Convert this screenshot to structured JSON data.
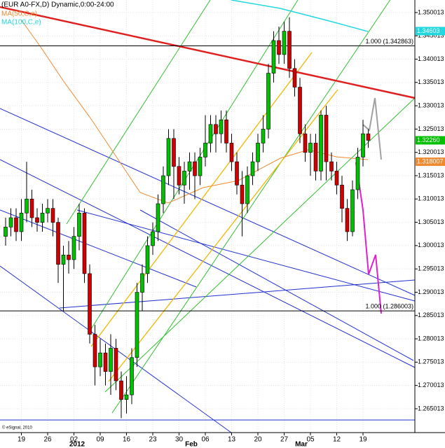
{
  "chart_data": {
    "type": "candlestick",
    "title": "(EUR A0-FX,D) Dynamic,0:00-24:00",
    "indicators": [
      {
        "name": "MA(50,C,e)",
        "color": "#f08a30"
      },
      {
        "name": "MA(100,C,e)",
        "color": "#20d8e0"
      }
    ],
    "footer": "© eSignal, 2010",
    "categories": [
      null,
      null,
      null,
      "19",
      null,
      null,
      null,
      null,
      "26",
      null,
      null,
      null,
      null,
      "02",
      null,
      null,
      null,
      null,
      "09",
      null,
      null,
      null,
      null,
      "16",
      null,
      null,
      null,
      null,
      "23",
      null,
      null,
      null,
      null,
      "30",
      null,
      null,
      null,
      null,
      "06",
      null,
      null,
      null,
      null,
      "13",
      null,
      null,
      null,
      null,
      "20",
      null,
      null,
      null,
      null,
      "27",
      null,
      null,
      null,
      null,
      "05",
      null,
      null,
      null,
      null,
      "12",
      null,
      null,
      null,
      null,
      "19",
      null
    ],
    "month_labels": [
      "2012",
      "Feb",
      "Mar"
    ],
    "open": [
      1.302,
      1.304,
      1.306,
      1.303,
      1.307,
      1.31,
      1.306,
      1.305,
      1.307,
      1.308,
      1.305,
      1.296,
      1.298,
      1.297,
      1.302,
      1.307,
      1.294,
      1.281,
      1.274,
      1.277,
      1.273,
      1.278,
      1.271,
      1.267,
      1.268,
      1.276,
      1.29,
      1.294,
      1.3,
      1.303,
      1.309,
      1.315,
      1.323,
      1.317,
      1.313,
      1.316,
      1.318,
      1.315,
      1.319,
      1.322,
      1.326,
      1.324,
      1.327,
      1.322,
      1.318,
      1.313,
      1.309,
      1.315,
      1.318,
      1.322,
      1.325,
      1.337,
      1.344,
      1.341,
      1.346,
      1.338,
      1.334,
      1.324,
      1.32,
      1.322,
      1.316,
      1.328,
      1.318,
      1.316,
      1.313,
      1.308,
      1.303,
      1.312,
      1.319,
      1.324
    ],
    "high": [
      1.306,
      1.308,
      1.308,
      1.31,
      1.318,
      1.312,
      1.308,
      1.309,
      1.31,
      1.31,
      1.306,
      1.3,
      1.301,
      1.304,
      1.309,
      1.308,
      1.296,
      1.283,
      1.28,
      1.279,
      1.281,
      1.28,
      1.273,
      1.272,
      1.278,
      1.292,
      1.296,
      1.302,
      1.305,
      1.311,
      1.317,
      1.325,
      1.325,
      1.319,
      1.318,
      1.32,
      1.32,
      1.321,
      1.328,
      1.328,
      1.328,
      1.329,
      1.329,
      1.324,
      1.32,
      1.316,
      1.317,
      1.32,
      1.324,
      1.328,
      1.339,
      1.346,
      1.347,
      1.348,
      1.349,
      1.34,
      1.336,
      1.326,
      1.324,
      1.324,
      1.329,
      1.33,
      1.32,
      1.318,
      1.315,
      1.31,
      1.314,
      1.321,
      1.327,
      1.325
    ],
    "low": [
      1.3,
      1.302,
      1.301,
      1.301,
      1.305,
      1.304,
      1.303,
      1.303,
      1.305,
      1.302,
      1.292,
      1.286,
      1.294,
      1.295,
      1.299,
      1.292,
      1.279,
      1.27,
      1.272,
      1.27,
      1.268,
      1.269,
      1.263,
      1.264,
      1.266,
      1.274,
      1.286,
      1.292,
      1.298,
      1.301,
      1.307,
      1.313,
      1.31,
      1.311,
      1.309,
      1.312,
      1.31,
      1.313,
      1.317,
      1.32,
      1.32,
      1.322,
      1.32,
      1.316,
      1.311,
      1.302,
      1.307,
      1.313,
      1.316,
      1.32,
      1.323,
      1.335,
      1.339,
      1.339,
      1.336,
      1.332,
      1.322,
      1.318,
      1.315,
      1.314,
      1.314,
      1.314,
      1.314,
      1.311,
      1.305,
      1.301,
      1.302,
      1.31,
      1.317,
      1.321
    ],
    "close": [
      1.304,
      1.306,
      1.303,
      1.307,
      1.31,
      1.306,
      1.305,
      1.307,
      1.308,
      1.305,
      1.296,
      1.298,
      1.297,
      1.302,
      1.307,
      1.294,
      1.281,
      1.274,
      1.277,
      1.273,
      1.278,
      1.271,
      1.267,
      1.268,
      1.276,
      1.29,
      1.294,
      1.3,
      1.303,
      1.309,
      1.315,
      1.323,
      1.317,
      1.313,
      1.316,
      1.318,
      1.315,
      1.319,
      1.322,
      1.326,
      1.324,
      1.327,
      1.322,
      1.318,
      1.313,
      1.309,
      1.315,
      1.318,
      1.322,
      1.325,
      1.337,
      1.344,
      1.341,
      1.346,
      1.338,
      1.334,
      1.324,
      1.32,
      1.322,
      1.316,
      1.328,
      1.318,
      1.316,
      1.313,
      1.308,
      1.303,
      1.312,
      1.319,
      1.324,
      1.3226
    ],
    "up_color": "#00c000",
    "down_color": "#d00000",
    "ylim": [
      1.2599,
      1.3527
    ],
    "yticks": [
      1.350013,
      1.345013,
      1.340013,
      1.335013,
      1.330013,
      1.325013,
      1.320013,
      1.315013,
      1.310013,
      1.305013,
      1.300013,
      1.295013,
      1.290013,
      1.285013,
      1.280013,
      1.275013,
      1.270013,
      1.265013
    ],
    "grid": true,
    "levels": [
      {
        "value": 1.342863,
        "label": "1.000 (1.342863)"
      },
      {
        "value": 1.286003,
        "label": "1.000 (1.286003)"
      }
    ],
    "price_tags": [
      {
        "value": 1.34603,
        "label": "1.34603",
        "color": "#20d8e0"
      },
      {
        "value": 1.3226,
        "label": "1.32260",
        "color": "#00c000"
      },
      {
        "value": 1.318007,
        "label": "1.318007",
        "color": "#f08a30"
      }
    ]
  }
}
